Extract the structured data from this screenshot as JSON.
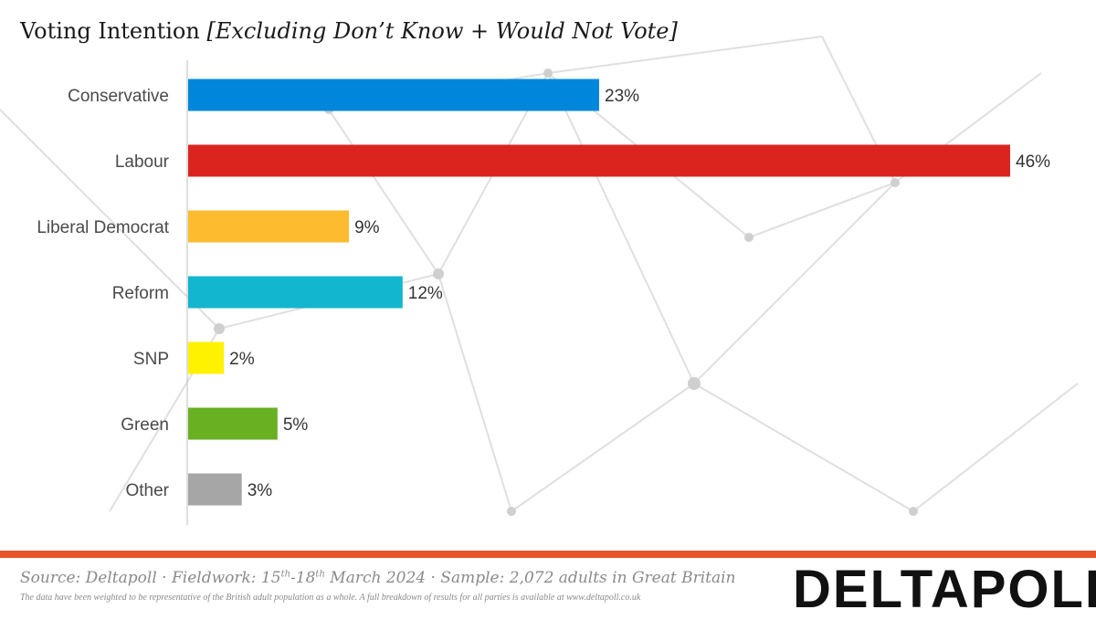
{
  "header": {
    "title": "Voting Intention",
    "subtitle": "[Excluding Don’t Know + Would Not Vote]"
  },
  "chart_data": {
    "type": "bar",
    "orientation": "horizontal",
    "categories": [
      "Conservative",
      "Labour",
      "Liberal Democrat",
      "Reform",
      "SNP",
      "Green",
      "Other"
    ],
    "values": [
      23,
      46,
      9,
      12,
      2,
      5,
      3
    ],
    "value_labels": [
      "23%",
      "46%",
      "9%",
      "12%",
      "2%",
      "5%",
      "3%"
    ],
    "colors": [
      "#0087dc",
      "#dc241f",
      "#fdbb30",
      "#12b6cf",
      "#fff200",
      "#6ab023",
      "#a6a6a6"
    ],
    "unit": "%",
    "xlim": [
      0,
      46
    ],
    "grid": false,
    "legend": "none"
  },
  "footer": {
    "source_prefix": "Source: Deltapoll · Fieldwork: 15",
    "fw_start_sup": "th",
    "fw_mid": "-18",
    "fw_end_sup": "th",
    "source_suffix": " March 2024 · Sample: 2,072 adults in Great Britain",
    "note": "The data have been weighted to be representative of the British adult population as a whole. A full breakdown of results for all parties is available at www.deltapoll.co.uk",
    "logo_text": "DELTAPOLL"
  }
}
